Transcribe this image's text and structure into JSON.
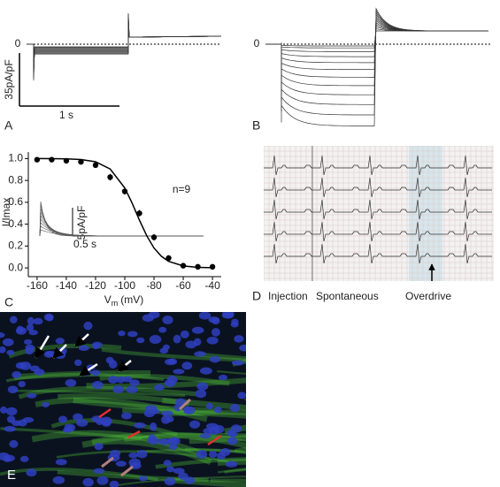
{
  "panel_a": {
    "label": "A",
    "zero_label": "0",
    "scale_y_label": "35pA/pF",
    "scale_x_label": "1 s"
  },
  "panel_b": {
    "label": "B",
    "zero_label": "0"
  },
  "chart_data": {
    "type": "scatter",
    "panel_label": "C",
    "x_label": {
      "symbol": "V",
      "subscript": "m",
      "unit": "(mV)"
    },
    "y_label": "I/Imax",
    "annotation": "n=9",
    "inset": {
      "scale_y_label": "5pA/pF",
      "scale_x_label": "0.5 s"
    },
    "xlim": [
      -166,
      -34
    ],
    "ylim": [
      -0.08,
      1.06
    ],
    "xticks": [
      -160,
      -140,
      -120,
      -100,
      -80,
      -60,
      -40
    ],
    "yticks": [
      {
        "value": 0,
        "label": "0.0"
      },
      {
        "value": 0.2,
        "label": "0.2"
      },
      {
        "value": 0.4,
        "label": "0.4"
      },
      {
        "value": 0.6,
        "label": "0.6"
      },
      {
        "value": 0.8,
        "label": "0.8"
      },
      {
        "value": 1,
        "label": "1.0"
      }
    ],
    "series": [
      {
        "name": "data",
        "color": "#000000",
        "x": [
          -160,
          -150,
          -140,
          -130,
          -120,
          -110,
          -100,
          -90,
          -80,
          -70,
          -60,
          -50,
          -40
        ],
        "values": [
          0.99,
          0.99,
          0.98,
          0.97,
          0.94,
          0.83,
          0.7,
          0.5,
          0.28,
          0.09,
          0.02,
          0.01,
          0.01
        ],
        "errors": [
          0.01,
          0.01,
          0.01,
          0.01,
          0.02,
          0.03,
          0.03,
          0.03,
          0.03,
          0.02,
          0.01,
          0.01,
          0.01
        ]
      },
      {
        "name": "fit",
        "color": "#000000",
        "x": [
          -160,
          -150,
          -140,
          -130,
          -120,
          -110,
          -100,
          -95,
          -90,
          -85,
          -80,
          -75,
          -70,
          -60,
          -50,
          -40
        ],
        "values": [
          1.0,
          0.999,
          0.998,
          0.991,
          0.971,
          0.905,
          0.731,
          0.593,
          0.438,
          0.294,
          0.182,
          0.107,
          0.06,
          0.018,
          0.005,
          0.002
        ]
      }
    ]
  },
  "panel_d": {
    "label": "D",
    "captions": [
      "Injection",
      "Spontaneous",
      "Overdrive"
    ]
  },
  "panel_e": {
    "label": "E"
  }
}
